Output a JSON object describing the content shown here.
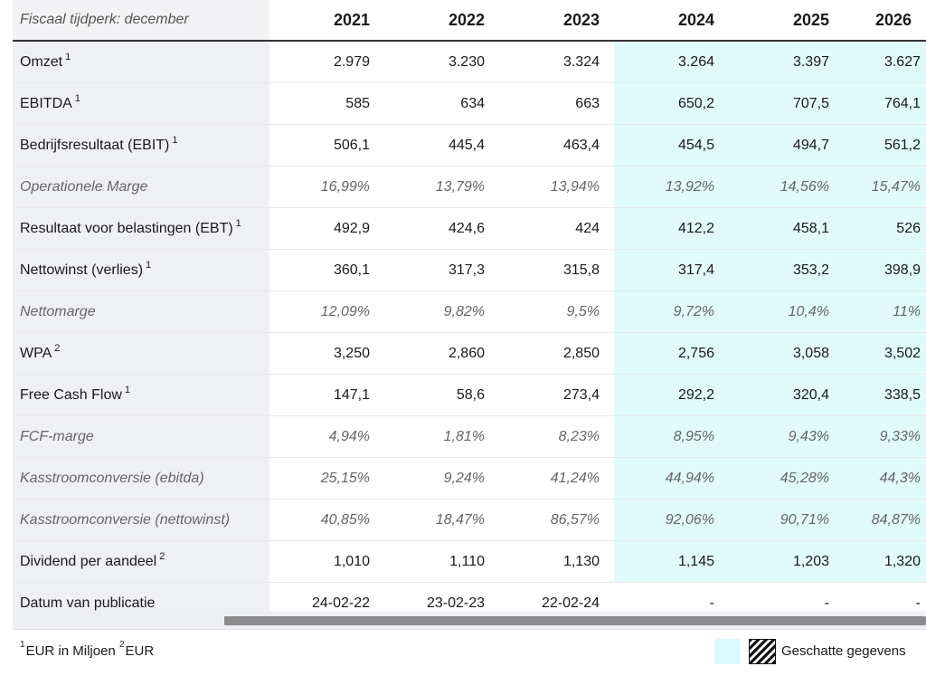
{
  "header": {
    "fiscal_label": "Fiscaal tijdperk: december",
    "years": [
      "2021",
      "2022",
      "2023",
      "2024",
      "2025",
      "2026"
    ]
  },
  "rows": [
    {
      "label": "Omzet",
      "sup": "1",
      "values": [
        "2.979",
        "3.230",
        "3.324",
        "3.264",
        "3.397",
        "3.627"
      ]
    },
    {
      "label": "EBITDA",
      "sup": "1",
      "values": [
        "585",
        "634",
        "663",
        "650,2",
        "707,5",
        "764,1"
      ]
    },
    {
      "label": "Bedrijfsresultaat (EBIT)",
      "sup": "1",
      "values": [
        "506,1",
        "445,4",
        "463,4",
        "454,5",
        "494,7",
        "561,2"
      ]
    },
    {
      "label": "Operationele Marge",
      "sup": "",
      "values": [
        "16,99%",
        "13,79%",
        "13,94%",
        "13,92%",
        "14,56%",
        "15,47%"
      ]
    },
    {
      "label": "Resultaat voor belastingen (EBT)",
      "sup": "1",
      "values": [
        "492,9",
        "424,6",
        "424",
        "412,2",
        "458,1",
        "526"
      ]
    },
    {
      "label": "Nettowinst (verlies)",
      "sup": "1",
      "values": [
        "360,1",
        "317,3",
        "315,8",
        "317,4",
        "353,2",
        "398,9"
      ]
    },
    {
      "label": "Nettomarge",
      "sup": "",
      "values": [
        "12,09%",
        "9,82%",
        "9,5%",
        "9,72%",
        "10,4%",
        "11%"
      ]
    },
    {
      "label": "WPA",
      "sup": "2",
      "values": [
        "3,250",
        "2,860",
        "2,850",
        "2,756",
        "3,058",
        "3,502"
      ]
    },
    {
      "label": "Free Cash Flow",
      "sup": "1",
      "values": [
        "147,1",
        "58,6",
        "273,4",
        "292,2",
        "320,4",
        "338,5"
      ]
    },
    {
      "label": "FCF-marge",
      "sup": "",
      "values": [
        "4,94%",
        "1,81%",
        "8,23%",
        "8,95%",
        "9,43%",
        "9,33%"
      ]
    },
    {
      "label": "Kasstroomconversie (ebitda)",
      "sup": "",
      "values": [
        "25,15%",
        "9,24%",
        "41,24%",
        "44,94%",
        "45,28%",
        "44,3%"
      ]
    },
    {
      "label": "Kasstroomconversie (nettowinst)",
      "sup": "",
      "values": [
        "40,85%",
        "18,47%",
        "86,57%",
        "92,06%",
        "90,71%",
        "84,87%"
      ]
    },
    {
      "label": "Dividend per aandeel",
      "sup": "2",
      "values": [
        "1,010",
        "1,110",
        "1,130",
        "1,145",
        "1,203",
        "1,320"
      ]
    },
    {
      "label": "Datum van publicatie",
      "sup": "",
      "values": [
        "24-02-22",
        "23-02-23",
        "22-02-24",
        "-",
        "-",
        "-"
      ]
    }
  ],
  "footer": {
    "sup1": "1",
    "note1": "EUR in Miljoen ",
    "sup2": "2",
    "note2": "EUR",
    "legend_label": "Geschatte gegevens"
  },
  "colors": {
    "estimate_bg": "#e1fafc",
    "label_bg": "#eff0f4",
    "scroll_thumb": "#8b8b8d"
  }
}
